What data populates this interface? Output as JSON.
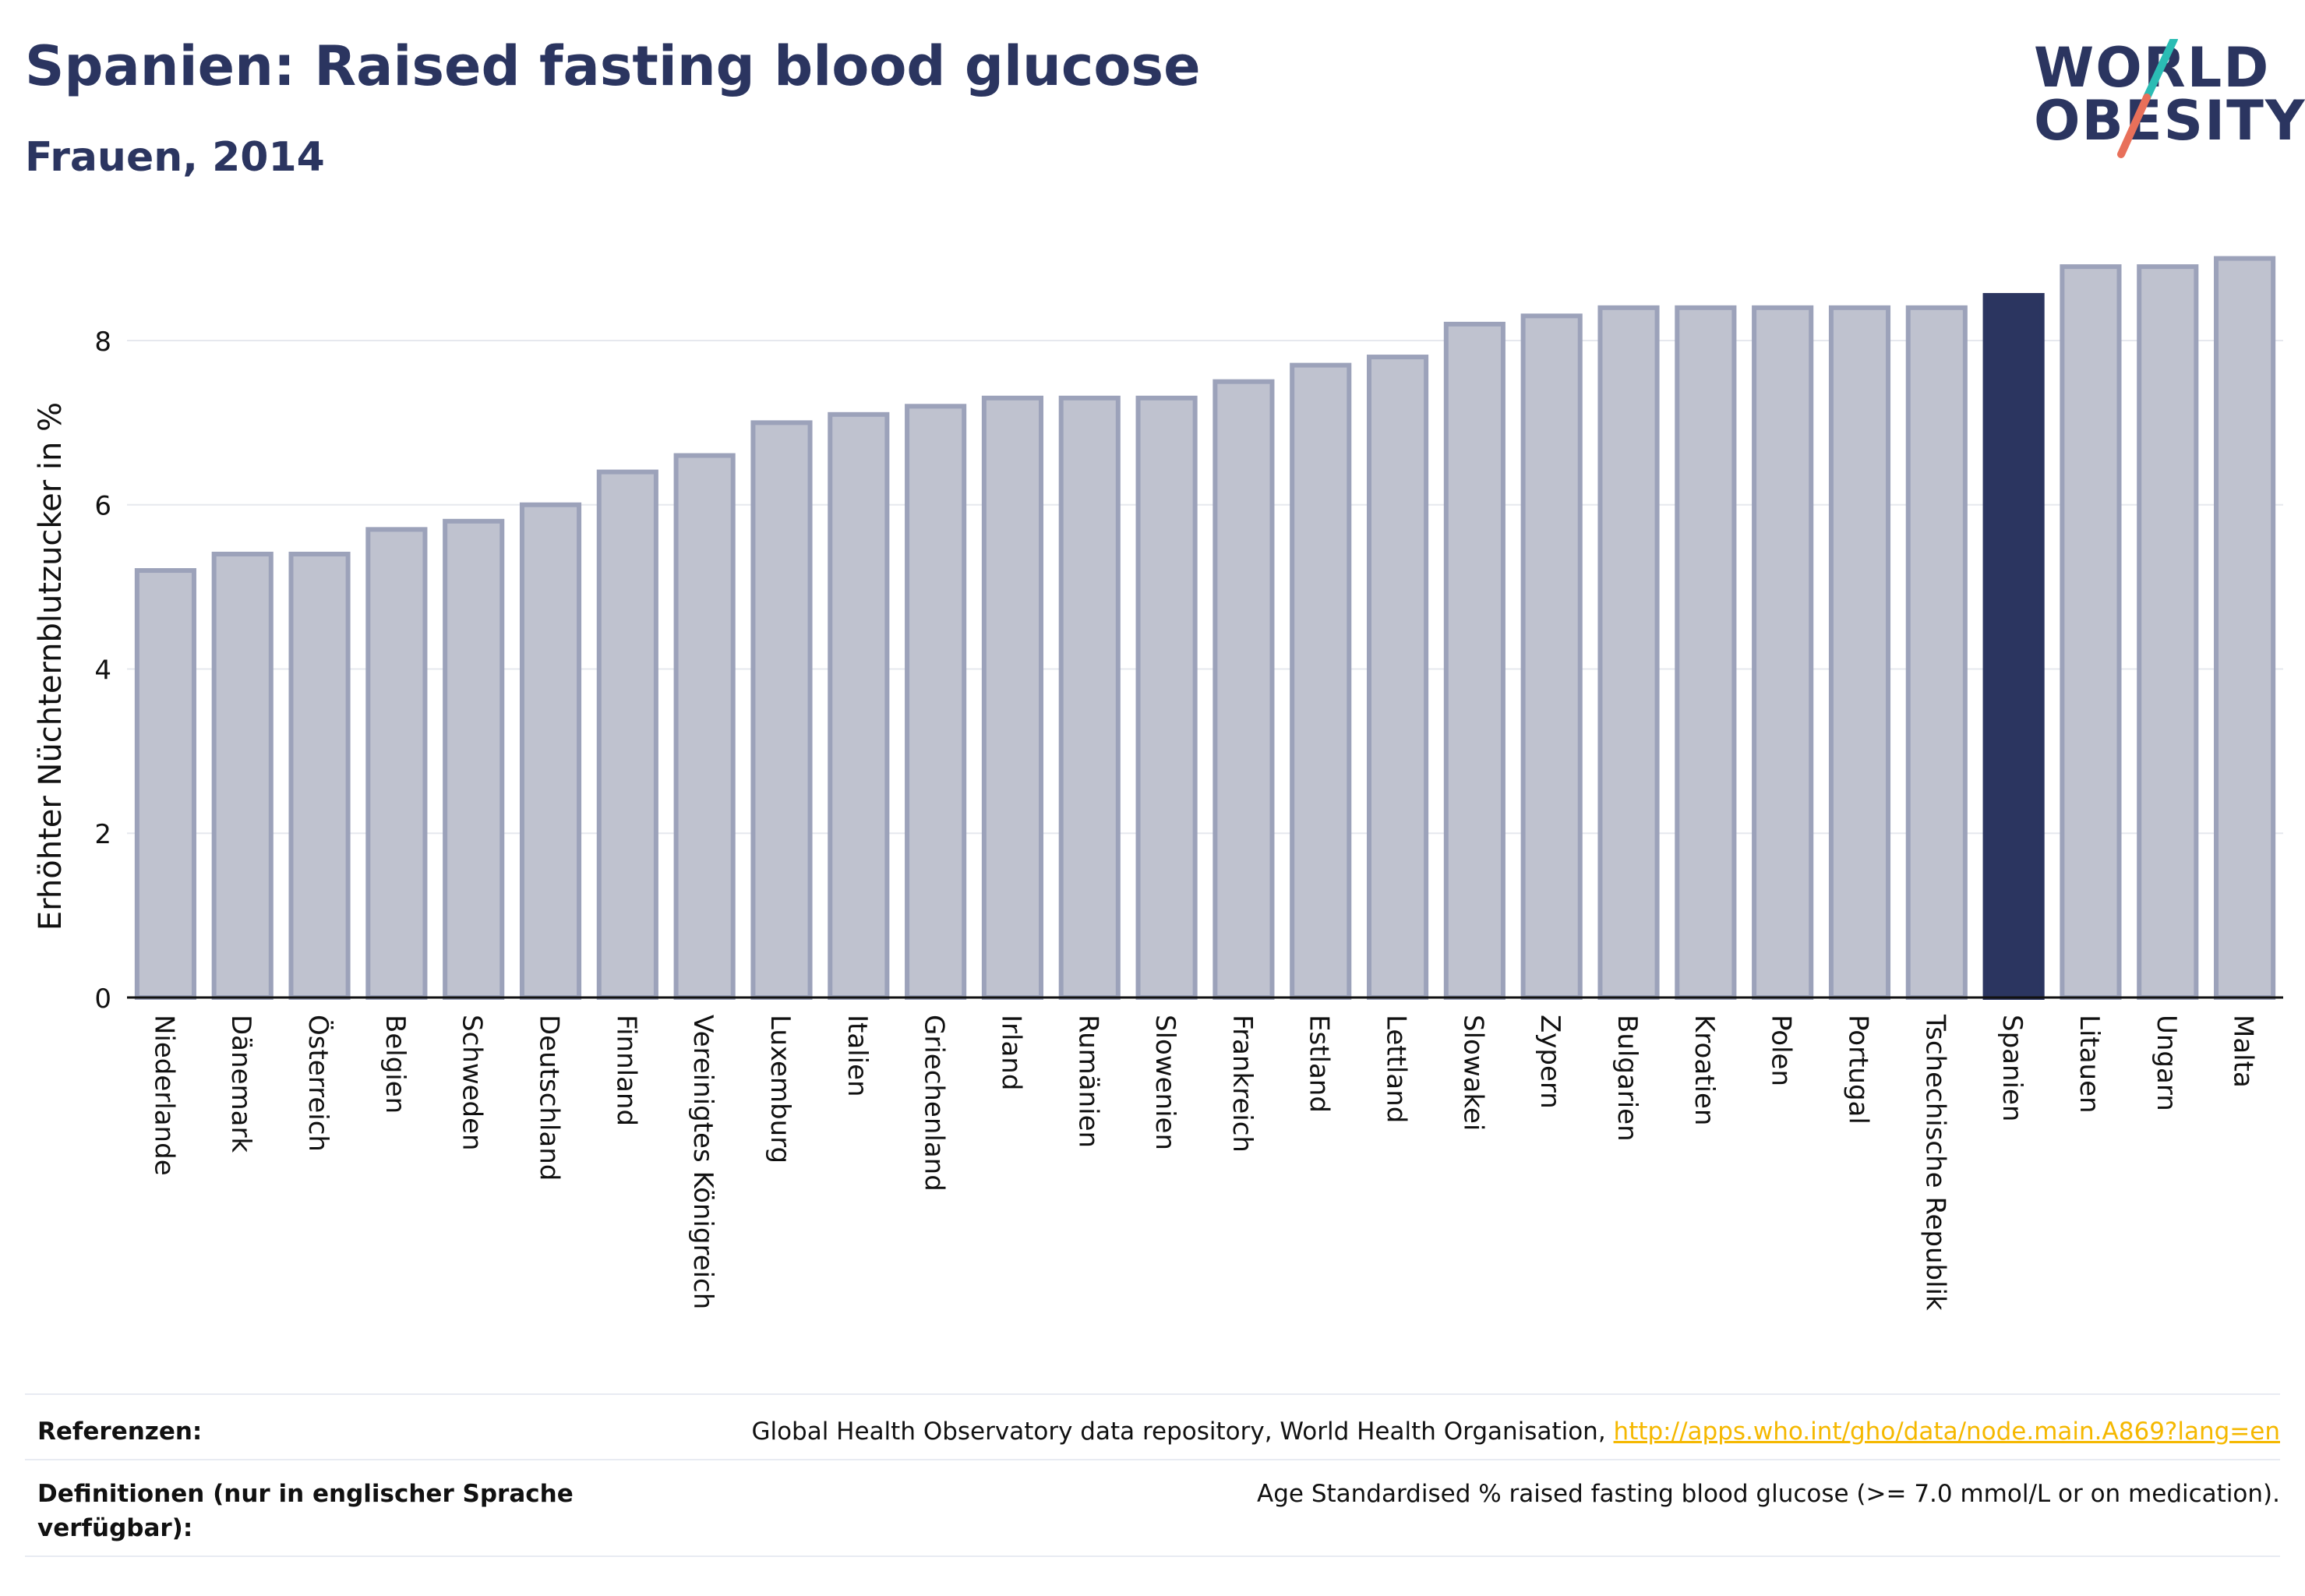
{
  "header": {
    "title": "Spanien: Raised fasting blood glucose",
    "subtitle": "Frauen, 2014"
  },
  "logo": {
    "line1": "WORLD",
    "line2": "OBESITY",
    "slash_colors": [
      "#2bbcb4",
      "#e8705a"
    ]
  },
  "colors": {
    "bar_default": "#bfc2cf",
    "bar_border": "#9ca2ba",
    "bar_highlight": "#2b3560",
    "text_dark": "#2b3560",
    "link": "#f5b800"
  },
  "chart_data": {
    "type": "bar",
    "categories": [
      "Niederlande",
      "Dänemark",
      "Österreich",
      "Belgien",
      "Schweden",
      "Deutschland",
      "Finnland",
      "Vereinigtes Königreich",
      "Luxemburg",
      "Italien",
      "Griechenland",
      "Irland",
      "Rumänien",
      "Slowenien",
      "Frankreich",
      "Estland",
      "Lettland",
      "Slowakei",
      "Zypern",
      "Bulgarien",
      "Kroatien",
      "Polen",
      "Portugal",
      "Tschechische Republik",
      "Spanien",
      "Litauen",
      "Ungarn",
      "Malta"
    ],
    "values": [
      5.2,
      5.4,
      5.4,
      5.7,
      5.8,
      6.0,
      6.4,
      6.6,
      7.0,
      7.1,
      7.2,
      7.3,
      7.3,
      7.3,
      7.5,
      7.7,
      7.8,
      8.2,
      8.3,
      8.4,
      8.4,
      8.4,
      8.4,
      8.4,
      8.55,
      8.9,
      8.9,
      9.0
    ],
    "highlight": "Spanien",
    "ylabel": "Erhöhter Nüchternblutzucker in %",
    "xlabel": "",
    "ylim": [
      0,
      9.3
    ],
    "yticks": [
      0,
      2,
      4,
      6,
      8
    ],
    "grid": true
  },
  "footer": {
    "references_label": "Referenzen:",
    "references_text": "Global Health Observatory data repository, World Health Organisation, ",
    "references_link": "http://apps.who.int/gho/data/node.main.A869?lang=en",
    "definitions_label_1": "Definitionen (nur in englischer Sprache",
    "definitions_label_2": "verfügbar):",
    "definitions_text": "Age Standardised % raised fasting blood glucose (>= 7.0 mmol/L or on medication)."
  }
}
